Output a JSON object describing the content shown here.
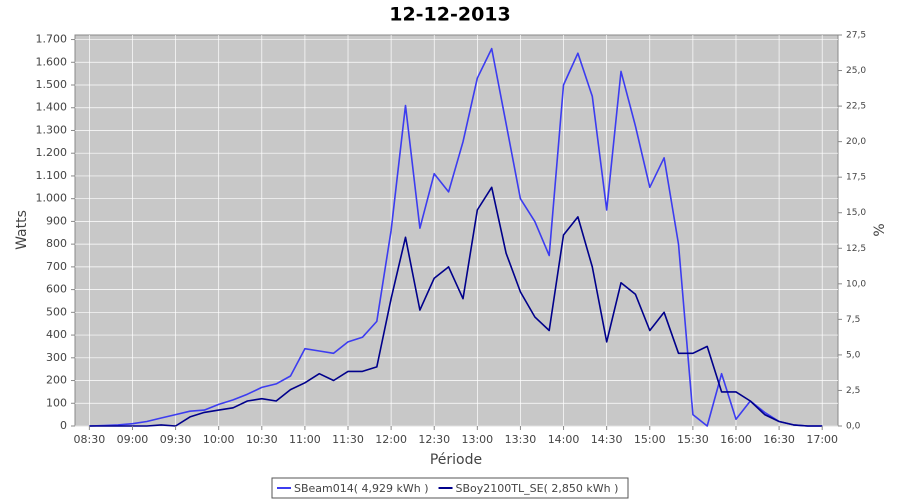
{
  "chart_data": {
    "type": "line",
    "title": "12-12-2013",
    "x_label": "Période",
    "y_label": "Watts",
    "y2_label": "%",
    "x": [
      "08:30",
      "08:40",
      "08:50",
      "09:00",
      "09:10",
      "09:20",
      "09:30",
      "09:40",
      "09:50",
      "10:00",
      "10:10",
      "10:20",
      "10:30",
      "10:40",
      "10:50",
      "11:00",
      "11:10",
      "11:20",
      "11:30",
      "11:40",
      "11:50",
      "12:00",
      "12:10",
      "12:20",
      "12:30",
      "12:40",
      "12:50",
      "13:00",
      "13:10",
      "13:20",
      "13:30",
      "13:40",
      "13:50",
      "14:00",
      "14:10",
      "14:20",
      "14:30",
      "14:40",
      "14:50",
      "15:00",
      "15:10",
      "15:20",
      "15:30",
      "15:40",
      "15:50",
      "16:00",
      "16:10",
      "16:20",
      "16:30",
      "16:40",
      "16:50",
      "17:00"
    ],
    "series": [
      {
        "name": "SBeam014( 4,929 kWh )",
        "color": "#3c3cf0",
        "values": [
          0,
          2,
          5,
          10,
          20,
          35,
          50,
          65,
          70,
          95,
          115,
          140,
          170,
          185,
          220,
          340,
          330,
          320,
          370,
          390,
          460,
          860,
          1410,
          870,
          1110,
          1030,
          1250,
          1530,
          1660,
          1330,
          1000,
          900,
          750,
          1500,
          1640,
          1450,
          950,
          1560,
          1320,
          1050,
          1180,
          800,
          50,
          0,
          230,
          30,
          110,
          60,
          20,
          5,
          0,
          0
        ]
      },
      {
        "name": "SBoy2100TL_SE( 2,850 kWh )",
        "color": "#00008b",
        "values": [
          0,
          0,
          0,
          0,
          0,
          5,
          0,
          40,
          60,
          70,
          80,
          110,
          120,
          110,
          160,
          190,
          230,
          200,
          240,
          240,
          260,
          560,
          830,
          510,
          650,
          700,
          560,
          950,
          1050,
          760,
          590,
          480,
          420,
          840,
          920,
          700,
          370,
          630,
          580,
          420,
          500,
          320,
          320,
          350,
          150,
          150,
          110,
          50,
          20,
          5,
          0,
          0
        ]
      }
    ],
    "xlim": [
      "08:20",
      "17:11"
    ],
    "xticks": [
      "08:30",
      "09:00",
      "09:30",
      "10:00",
      "10:30",
      "11:00",
      "11:30",
      "12:00",
      "12:30",
      "13:00",
      "13:30",
      "14:00",
      "14:30",
      "15:00",
      "15:30",
      "16:00",
      "16:30",
      "17:00"
    ],
    "ylim": [
      0,
      1720
    ],
    "yticks": [
      0,
      100,
      200,
      300,
      400,
      500,
      600,
      700,
      800,
      900,
      {
        "value": 1000,
        "label": "1.000"
      },
      {
        "value": 1100,
        "label": "1.100"
      },
      {
        "value": 1200,
        "label": "1.200"
      },
      {
        "value": 1300,
        "label": "1.300"
      },
      {
        "value": 1400,
        "label": "1.400"
      },
      {
        "value": 1500,
        "label": "1.500"
      },
      {
        "value": 1600,
        "label": "1.600"
      },
      {
        "value": 1700,
        "label": "1.700"
      }
    ],
    "y2lim": [
      0,
      27.5
    ],
    "y2ticks": [
      {
        "value": 0,
        "label": "0,0"
      },
      {
        "value": 2.5,
        "label": "2,5"
      },
      {
        "value": 5,
        "label": "5,0"
      },
      {
        "value": 7.5,
        "label": "7,5"
      },
      {
        "value": 10,
        "label": "10,0"
      },
      {
        "value": 12.5,
        "label": "12,5"
      },
      {
        "value": 15,
        "label": "15,0"
      },
      {
        "value": 17.5,
        "label": "17,5"
      },
      {
        "value": 20,
        "label": "20,0"
      },
      {
        "value": 22.5,
        "label": "22,5"
      },
      {
        "value": 25,
        "label": "25,0"
      },
      {
        "value": 27.5,
        "label": "27,5"
      }
    ],
    "grid": true,
    "plot_background": "#c8c8c8"
  }
}
